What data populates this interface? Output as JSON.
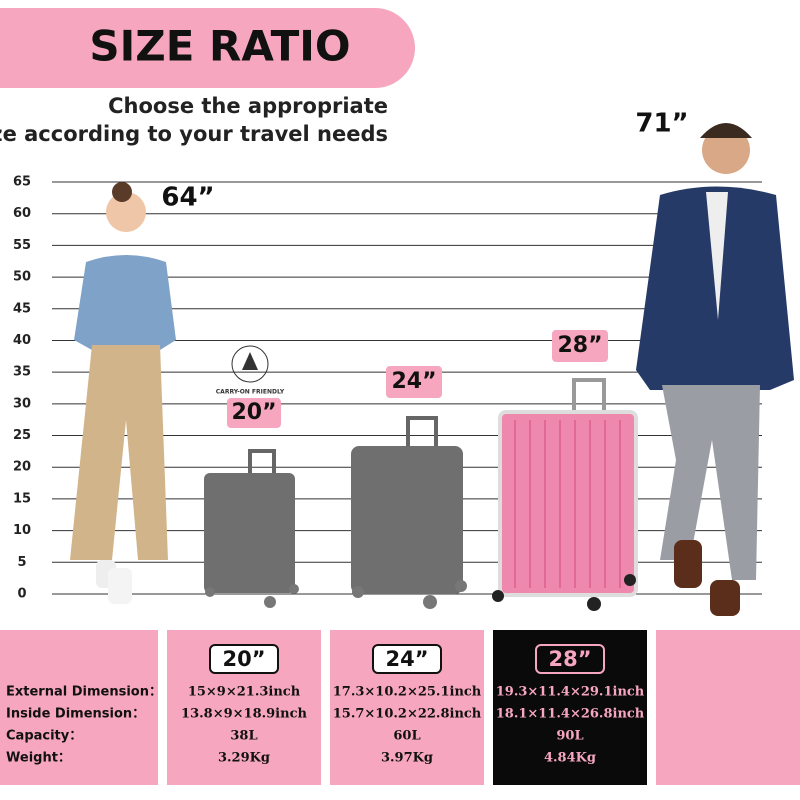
{
  "header": {
    "title": "SIZE RATIO",
    "subtitle_lines": [
      "Choose the appropriate",
      "size according to your travel needs"
    ]
  },
  "scale": {
    "ticks": [
      0,
      5,
      10,
      15,
      20,
      25,
      30,
      35,
      40,
      45,
      50,
      55,
      60,
      65
    ]
  },
  "figures": {
    "woman_height": "64”",
    "man_height": "71”"
  },
  "badge": "CARRY-ON FRIENDLY",
  "suitcases": [
    {
      "label": "20”"
    },
    {
      "label": "24”"
    },
    {
      "label": "28”"
    }
  ],
  "table": {
    "row_labels": [
      "External Dimension：",
      "Inside Dimension：",
      "Capacity：",
      "Weight："
    ],
    "columns": [
      {
        "size": "20”",
        "values": [
          "15×9×21.3inch",
          "13.8×9×18.9inch",
          "38L",
          "3.29Kg"
        ]
      },
      {
        "size": "24”",
        "values": [
          "17.3×10.2×25.1inch",
          "15.7×10.2×22.8inch",
          "60L",
          "3.97Kg"
        ]
      },
      {
        "size": "28”",
        "values": [
          "19.3×11.4×29.1inch",
          "18.1×11.4×26.8inch",
          "90L",
          "4.84Kg"
        ]
      }
    ]
  }
}
